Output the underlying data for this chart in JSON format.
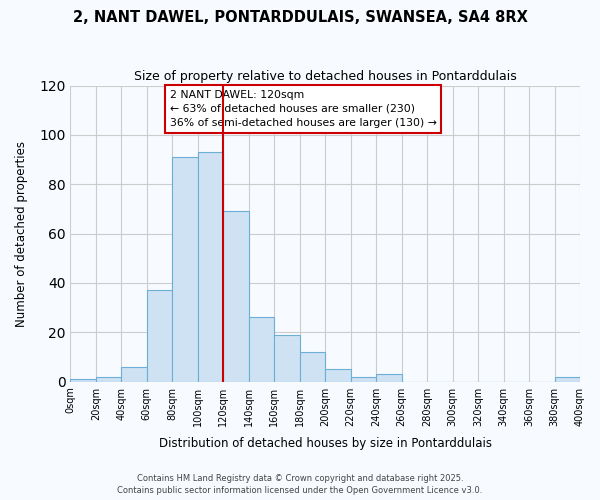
{
  "title": "2, NANT DAWEL, PONTARDDULAIS, SWANSEA, SA4 8RX",
  "subtitle": "Size of property relative to detached houses in Pontarddulais",
  "xlabel": "Distribution of detached houses by size in Pontarddulais",
  "ylabel": "Number of detached properties",
  "bar_edges": [
    0,
    20,
    40,
    60,
    80,
    100,
    120,
    140,
    160,
    180,
    200,
    220,
    240,
    260,
    280,
    300,
    320,
    340,
    360,
    380,
    400
  ],
  "bar_values": [
    1,
    2,
    6,
    37,
    91,
    93,
    69,
    26,
    19,
    12,
    5,
    2,
    3,
    0,
    0,
    0,
    0,
    0,
    0,
    2
  ],
  "bar_face_color": "#cfe2f3",
  "bar_edge_color": "#6baed6",
  "vline_x": 120,
  "vline_color": "#cc0000",
  "annotation_title": "2 NANT DAWEL: 120sqm",
  "annotation_line1": "← 63% of detached houses are smaller (230)",
  "annotation_line2": "36% of semi-detached houses are larger (130) →",
  "annotation_box_edge": "#cc0000",
  "annotation_box_face": "#ffffff",
  "xlim": [
    0,
    400
  ],
  "ylim": [
    0,
    120
  ],
  "yticks": [
    0,
    20,
    40,
    60,
    80,
    100,
    120
  ],
  "xtick_labels": [
    "0sqm",
    "20sqm",
    "40sqm",
    "60sqm",
    "80sqm",
    "100sqm",
    "120sqm",
    "140sqm",
    "160sqm",
    "180sqm",
    "200sqm",
    "220sqm",
    "240sqm",
    "260sqm",
    "280sqm",
    "300sqm",
    "320sqm",
    "340sqm",
    "360sqm",
    "380sqm",
    "400sqm"
  ],
  "grid_color": "#cccccc",
  "bg_color": "#f7fbff",
  "footer_line1": "Contains HM Land Registry data © Crown copyright and database right 2025.",
  "footer_line2": "Contains public sector information licensed under the Open Government Licence v3.0."
}
